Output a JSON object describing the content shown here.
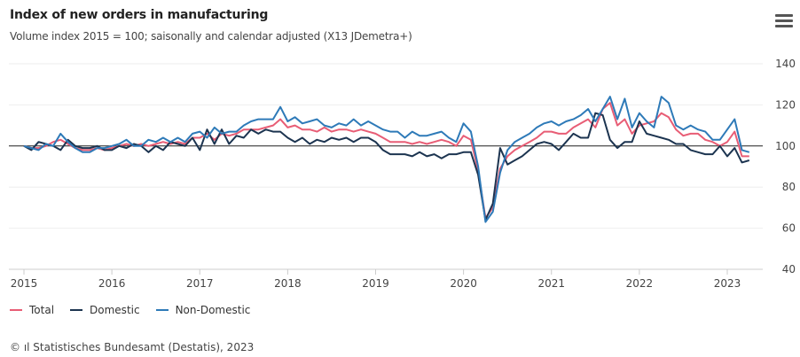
{
  "header": {
    "title": "Index of new orders in manufacturing",
    "subtitle": "Volume index 2015 = 100; saisonally and calendar adjusted (X13 JDemetra+)",
    "menu_icon": "hamburger-icon"
  },
  "footer": {
    "credit": "© ıl Statistisches Bundesamt (Destatis), 2023"
  },
  "chart_data": {
    "type": "line",
    "title": "Index of new orders in manufacturing",
    "xlabel": "",
    "ylabel": "",
    "x_start": "2015-01",
    "frequency": "monthly",
    "x_ticks": [
      "2015",
      "2016",
      "2017",
      "2018",
      "2019",
      "2020",
      "2021",
      "2022",
      "2023"
    ],
    "y_ticks": [
      40,
      60,
      80,
      100,
      120,
      140
    ],
    "ylim": [
      40,
      140
    ],
    "reference_line": 100,
    "legend_position": "bottom-left",
    "colors": {
      "Total": "#e85d75",
      "Domestic": "#1c3450",
      "Non-Domestic": "#2e7ab8"
    },
    "series": [
      {
        "name": "Total",
        "values": [
          100,
          99,
          99,
          100,
          102,
          103,
          101,
          99,
          98,
          98,
          99,
          98,
          99,
          100,
          101,
          100,
          101,
          100,
          101,
          102,
          101,
          102,
          101,
          104,
          104,
          106,
          103,
          106,
          105,
          106,
          108,
          108,
          108,
          109,
          110,
          113,
          109,
          110,
          108,
          108,
          107,
          109,
          107,
          108,
          108,
          107,
          108,
          107,
          106,
          104,
          102,
          102,
          102,
          101,
          102,
          101,
          102,
          103,
          102,
          100,
          105,
          103,
          88,
          65,
          70,
          89,
          95,
          98,
          100,
          102,
          104,
          107,
          107,
          106,
          106,
          109,
          111,
          113,
          109,
          118,
          121,
          110,
          113,
          106,
          110,
          111,
          112,
          116,
          114,
          108,
          105,
          106,
          106,
          103,
          102,
          100,
          102,
          107,
          95,
          95
        ]
      },
      {
        "name": "Domestic",
        "values": [
          100,
          98,
          102,
          101,
          100,
          98,
          103,
          100,
          99,
          99,
          100,
          98,
          98,
          100,
          99,
          101,
          100,
          97,
          100,
          98,
          102,
          101,
          100,
          104,
          98,
          108,
          101,
          108,
          101,
          105,
          104,
          108,
          106,
          108,
          107,
          107,
          104,
          102,
          104,
          101,
          103,
          102,
          104,
          103,
          104,
          102,
          104,
          104,
          102,
          98,
          96,
          96,
          96,
          95,
          97,
          95,
          96,
          94,
          96,
          96,
          97,
          97,
          86,
          64,
          72,
          99,
          91,
          93,
          95,
          98,
          101,
          102,
          101,
          98,
          102,
          106,
          104,
          104,
          116,
          115,
          103,
          99,
          102,
          102,
          112,
          106,
          105,
          104,
          103,
          101,
          101,
          98,
          97,
          96,
          96,
          100,
          95,
          99,
          92,
          93
        ]
      },
      {
        "name": "Non-Domestic",
        "values": [
          100,
          99,
          98,
          101,
          100,
          106,
          102,
          99,
          97,
          97,
          99,
          99,
          100,
          101,
          103,
          100,
          100,
          103,
          102,
          104,
          102,
          104,
          102,
          106,
          107,
          104,
          109,
          106,
          107,
          107,
          110,
          112,
          113,
          113,
          113,
          119,
          112,
          114,
          111,
          112,
          113,
          110,
          109,
          111,
          110,
          113,
          110,
          112,
          110,
          108,
          107,
          107,
          104,
          107,
          105,
          105,
          106,
          107,
          104,
          102,
          111,
          107,
          90,
          63,
          68,
          87,
          98,
          102,
          104,
          106,
          109,
          111,
          112,
          110,
          112,
          113,
          115,
          118,
          112,
          118,
          124,
          113,
          123,
          109,
          116,
          112,
          109,
          124,
          121,
          110,
          108,
          110,
          108,
          107,
          103,
          103,
          108,
          113,
          98,
          97
        ]
      }
    ]
  }
}
